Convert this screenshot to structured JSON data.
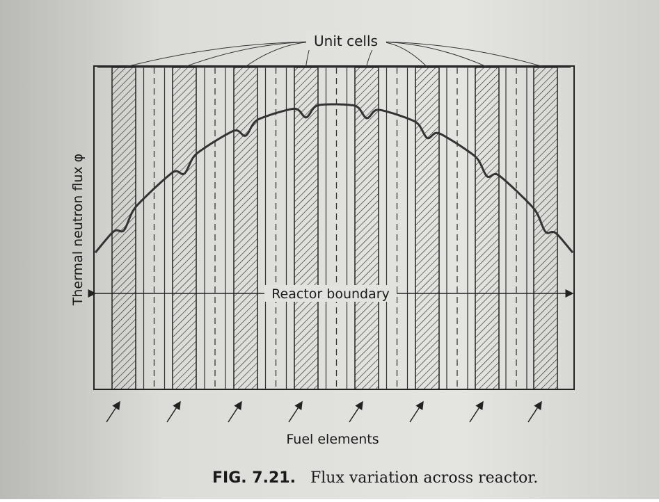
{
  "labels": {
    "unit_cells": "Unit cells",
    "y_axis": "Thermal neutron flux φ",
    "boundary": "Reactor boundary",
    "fuel": "Fuel elements"
  },
  "caption": {
    "number": "FIG. 7.21.",
    "text": "Flux variation across reactor."
  }
}
